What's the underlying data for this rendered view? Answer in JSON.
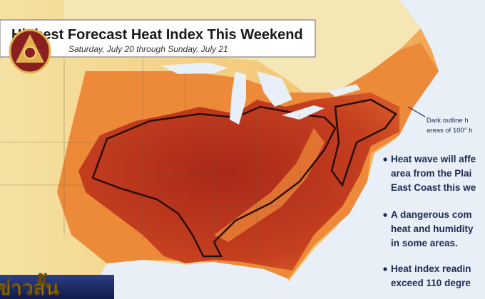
{
  "header": {
    "title": "Highest Forecast Heat Index This Weekend",
    "subtitle": "Saturday, July 20 through Sunday, July 21"
  },
  "annotation": [
    "Dark outline h",
    "areas of 100° h"
  ],
  "bullets": [
    [
      "Heat wave will affe",
      "area from the Plai",
      "East Coast this we"
    ],
    [
      "A dangerous com",
      "heat and humidity",
      "in some areas."
    ],
    [
      "Heat index readin",
      "exceed 110 degre"
    ]
  ],
  "banner": "ข่าวสั้น"
}
